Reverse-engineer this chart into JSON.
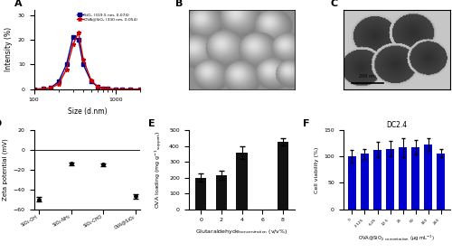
{
  "panel_A": {
    "label": "A",
    "sio2_label": "SiO₂ (319.5 nm, 0.074)",
    "ova_label": "OVA@SiO₂ (330 nm, 0.054)",
    "sio2_color": "#00008B",
    "ova_color": "#CC0000",
    "xlabel": "Size (d.nm)",
    "ylabel": "Intensity (%)",
    "xmin": 100,
    "xmax": 2000,
    "ymin": 0,
    "ymax": 32,
    "sio2_x": [
      100,
      130,
      160,
      200,
      250,
      300,
      350,
      400,
      500,
      600,
      700,
      800,
      1000,
      1200,
      1500,
      2000
    ],
    "sio2_y": [
      0,
      0.1,
      0.5,
      3,
      10,
      21,
      20,
      10,
      3,
      1,
      0.3,
      0.1,
      0,
      0,
      0,
      0
    ],
    "ova_x": [
      100,
      130,
      160,
      200,
      250,
      300,
      350,
      400,
      500,
      600,
      700,
      800,
      1000,
      1200,
      1500,
      2000
    ],
    "ova_y": [
      0,
      0.1,
      0.5,
      2,
      8,
      18,
      23,
      12,
      3.5,
      1,
      0.3,
      0.1,
      0,
      0,
      0,
      0
    ]
  },
  "panel_D": {
    "label": "D",
    "categories": [
      "SiO₂-OH",
      "SiO₂-NH₂",
      "SiO₂-CHO",
      "OVA@SiO₂"
    ],
    "means": [
      -50,
      -14,
      -15,
      -47
    ],
    "errors": [
      2,
      1.5,
      1.5,
      2
    ],
    "ylabel": "Zeta potential (mV)",
    "ymin": -60,
    "ymax": 20,
    "color": "#000000"
  },
  "panel_E": {
    "label": "E",
    "categories": [
      "0",
      "2",
      "4",
      "6",
      "8"
    ],
    "values": [
      200,
      215,
      355,
      0,
      425
    ],
    "errors": [
      25,
      28,
      40,
      0,
      22
    ],
    "xlabel": "Glutaraldehyde",
    "xlabel_sub": "concentration",
    "xlabel_unit": "(v/v%)",
    "ylabel": "OVA loading (mg g",
    "ymin": 0,
    "ymax": 500,
    "color": "#111111"
  },
  "panel_F": {
    "label": "F",
    "title": "DC2.4",
    "categories": [
      "0",
      "3.125",
      "6.25",
      "12.5",
      "25",
      "50",
      "100",
      "200"
    ],
    "values": [
      100,
      105,
      113,
      115,
      117,
      118,
      123,
      106
    ],
    "errors": [
      12,
      10,
      15,
      15,
      18,
      14,
      12,
      8
    ],
    "ylabel": "Cell viability (%)",
    "ymin": 0,
    "ymax": 150,
    "color": "#0000CC"
  },
  "sem_bg": "#909090",
  "sem_sphere_color": "#C8C8C8",
  "sem_highlight": "#E8E8E8",
  "tem_bg": "#C0C0C0",
  "tem_sphere_outer": "#D0D0D0",
  "tem_sphere_inner": "#2A2A2A"
}
